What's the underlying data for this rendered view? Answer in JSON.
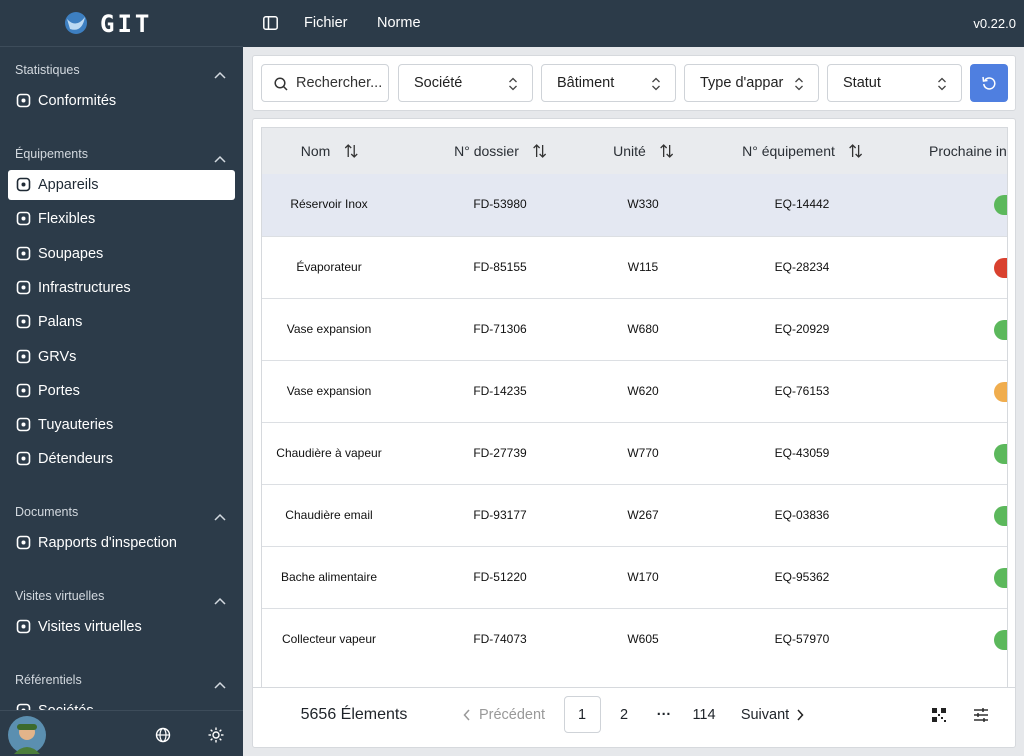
{
  "sidebar": {
    "logo": "GIT",
    "sections": [
      {
        "title": "Statistiques",
        "items": [
          "Conformités"
        ]
      },
      {
        "title": "Équipements",
        "items": [
          "Appareils",
          "Flexibles",
          "Soupapes",
          "Infrastructures",
          "Palans",
          "GRVs",
          "Portes",
          "Tuyauteries",
          "Détendeurs"
        ]
      },
      {
        "title": "Documents",
        "items": [
          "Rapports d'inspection"
        ]
      },
      {
        "title": "Visites virtuelles",
        "items": [
          "Visites virtuelles"
        ]
      },
      {
        "title": "Référentiels",
        "items": [
          "Sociétés"
        ]
      }
    ]
  },
  "topbar": {
    "menu": [
      "Fichier",
      "Norme"
    ],
    "version": "v0.22.0"
  },
  "filters": {
    "search_placeholder": "Rechercher...",
    "selects": [
      "Société",
      "Bâtiment",
      "Type d'appar",
      "Statut"
    ]
  },
  "table": {
    "columns": [
      "Nom",
      "N° dossier",
      "Unité",
      "N° équipement",
      "Prochaine inspection"
    ],
    "rows": [
      [
        "Réservoir Inox",
        "FD-53980",
        "W330",
        "EQ-14442"
      ],
      [
        "Évaporateur",
        "FD-85155",
        "W115",
        "EQ-28234"
      ],
      [
        "Vase expansion",
        "FD-71306",
        "W680",
        "EQ-20929"
      ],
      [
        "Vase expansion",
        "FD-14235",
        "W620",
        "EQ-76153"
      ],
      [
        "Chaudière à vapeur",
        "FD-27739",
        "W770",
        "EQ-43059"
      ],
      [
        "Chaudière email",
        "FD-93177",
        "W267",
        "EQ-03836"
      ],
      [
        "Bache alimentaire",
        "FD-51220",
        "W170",
        "EQ-95362"
      ],
      [
        "Collecteur vapeur",
        "FD-74073",
        "W605",
        "EQ-57970"
      ]
    ]
  },
  "pagination": {
    "total": "5656 Élements",
    "previous": "Précédent",
    "pages": [
      "1",
      "2",
      "···",
      "114"
    ],
    "next": "Suivant"
  }
}
